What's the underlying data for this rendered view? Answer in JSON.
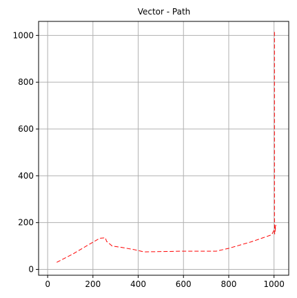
{
  "chart_data": {
    "type": "line",
    "title": "Vector - Path",
    "xlabel": "",
    "ylabel": "",
    "xlim": [
      -40,
      1065
    ],
    "ylim": [
      -25,
      1060
    ],
    "xticks": [
      0,
      200,
      400,
      600,
      800,
      1000
    ],
    "yticks": [
      0,
      200,
      400,
      600,
      800,
      1000
    ],
    "grid": true,
    "series": [
      {
        "style": "dashed",
        "x": [
          40,
          110,
          180,
          230,
          255,
          260,
          285,
          320,
          380,
          425,
          600,
          745,
          800,
          900,
          990,
          1005,
          1008,
          1003,
          1002,
          1002,
          1002
        ],
        "y": [
          30,
          65,
          105,
          133,
          135,
          120,
          100,
          95,
          85,
          75,
          78,
          78,
          90,
          118,
          148,
          178,
          190,
          150,
          225,
          600,
          1020
        ]
      }
    ],
    "colors": {
      "line": "#ff0000",
      "grid": "#b0b0b0",
      "axes": "#000000",
      "background": "#ffffff"
    }
  }
}
